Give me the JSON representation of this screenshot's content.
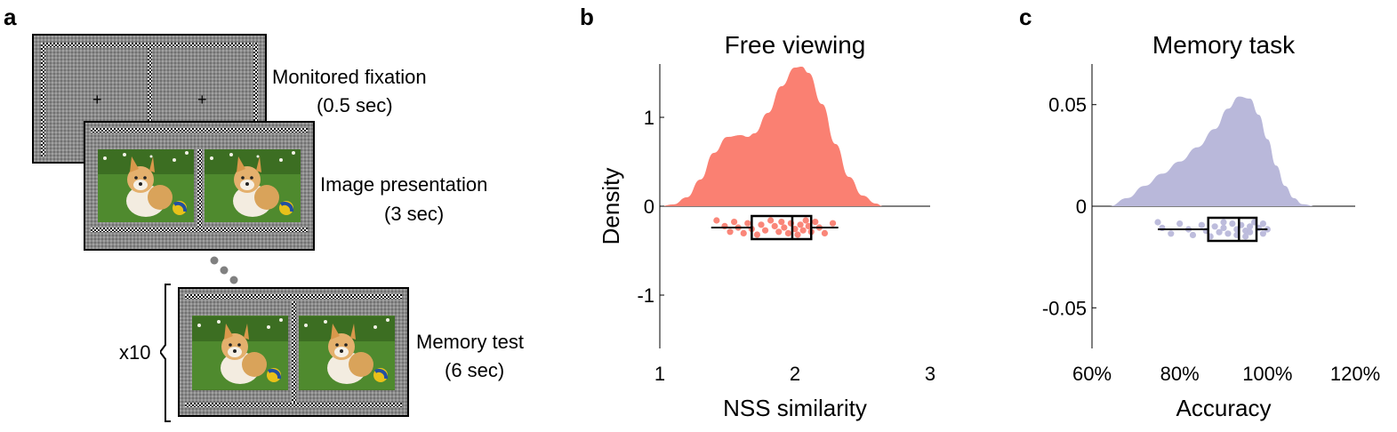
{
  "panels": {
    "a": {
      "letter": "a",
      "steps": [
        {
          "label": "Monitored fixation",
          "duration": "(0.5 sec)"
        },
        {
          "label": "Image presentation",
          "duration": "(3 sec)"
        },
        {
          "label": "Memory test",
          "duration": "(6 sec)"
        }
      ],
      "repeat": "x10",
      "fixation_symbol": "+"
    },
    "b": {
      "letter": "b"
    },
    "c": {
      "letter": "c"
    }
  },
  "chart_data": [
    {
      "type": "violin",
      "title": "Free viewing",
      "xlabel": "NSS similarity",
      "ylabel": "Density",
      "xlim": [
        1,
        3
      ],
      "ylim": [
        -1.6,
        1.6
      ],
      "xticks": [
        "1",
        "2",
        "3"
      ],
      "yticks": [
        "-1",
        "0",
        "1"
      ],
      "color": "#fa8072",
      "density": {
        "x": [
          1.0,
          1.1,
          1.2,
          1.3,
          1.4,
          1.5,
          1.6,
          1.65,
          1.7,
          1.8,
          1.9,
          2.0,
          2.05,
          2.1,
          2.2,
          2.3,
          2.4,
          2.5,
          2.6,
          2.65
        ],
        "y": [
          0.0,
          0.02,
          0.1,
          0.3,
          0.6,
          0.78,
          0.8,
          0.78,
          0.82,
          1.05,
          1.35,
          1.56,
          1.57,
          1.5,
          1.15,
          0.7,
          0.33,
          0.12,
          0.03,
          0.0
        ]
      },
      "points": [
        1.42,
        1.48,
        1.52,
        1.55,
        1.58,
        1.62,
        1.65,
        1.68,
        1.72,
        1.75,
        1.78,
        1.82,
        1.85,
        1.88,
        1.9,
        1.92,
        1.95,
        1.97,
        2.0,
        2.02,
        2.04,
        2.06,
        2.08,
        2.1,
        2.12,
        2.15,
        2.18,
        2.22,
        2.28
      ],
      "box": {
        "whisker_low": 1.38,
        "q1": 1.68,
        "median": 1.98,
        "q3": 2.12,
        "whisker_high": 2.32
      }
    },
    {
      "type": "violin",
      "title": "Memory task",
      "xlabel": "Accuracy",
      "ylabel": "",
      "xlim": [
        0.6,
        1.2
      ],
      "ylim": [
        -0.07,
        0.07
      ],
      "xticks": [
        "60%",
        "80%",
        "100%",
        "120%"
      ],
      "yticks": [
        "-0.05",
        "0",
        "0.05"
      ],
      "color": "#b9b8da",
      "density": {
        "x": [
          0.64,
          0.68,
          0.72,
          0.76,
          0.8,
          0.84,
          0.88,
          0.91,
          0.935,
          0.96,
          0.98,
          1.0,
          1.02,
          1.04,
          1.06,
          1.08,
          1.11
        ],
        "y": [
          0.0,
          0.004,
          0.01,
          0.016,
          0.022,
          0.029,
          0.038,
          0.048,
          0.054,
          0.053,
          0.045,
          0.033,
          0.02,
          0.01,
          0.004,
          0.001,
          0.0
        ]
      },
      "points": [
        0.75,
        0.76,
        0.78,
        0.8,
        0.82,
        0.83,
        0.85,
        0.86,
        0.87,
        0.88,
        0.89,
        0.9,
        0.9,
        0.91,
        0.92,
        0.93,
        0.93,
        0.94,
        0.95,
        0.95,
        0.96,
        0.96,
        0.97,
        0.98,
        0.99,
        0.99,
        1.0
      ],
      "box": {
        "whisker_low": 0.75,
        "q1": 0.865,
        "median": 0.935,
        "q3": 0.975,
        "whisker_high": 1.0
      }
    }
  ]
}
